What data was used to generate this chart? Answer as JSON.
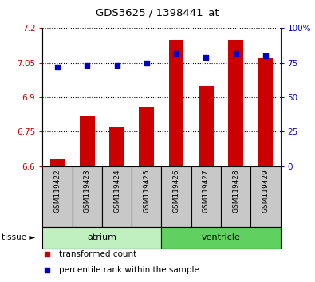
{
  "title": "GDS3625 / 1398441_at",
  "samples": [
    "GSM119422",
    "GSM119423",
    "GSM119424",
    "GSM119425",
    "GSM119426",
    "GSM119427",
    "GSM119428",
    "GSM119429"
  ],
  "transformed_count": [
    6.63,
    6.82,
    6.77,
    6.86,
    7.15,
    6.95,
    7.15,
    7.07
  ],
  "percentile_rank": [
    72,
    73,
    73,
    75,
    82,
    79,
    82,
    80
  ],
  "ylim_left": [
    6.6,
    7.2
  ],
  "ylim_right": [
    0,
    100
  ],
  "yticks_left": [
    6.6,
    6.75,
    6.9,
    7.05,
    7.2
  ],
  "yticks_right": [
    0,
    25,
    50,
    75,
    100
  ],
  "ytick_labels_left": [
    "6.6",
    "6.75",
    "6.9",
    "7.05",
    "7.2"
  ],
  "ytick_labels_right": [
    "0",
    "25",
    "50",
    "75",
    "100%"
  ],
  "groups": [
    {
      "name": "atrium",
      "indices": [
        0,
        1,
        2,
        3
      ],
      "color": "#c0f0c0"
    },
    {
      "name": "ventricle",
      "indices": [
        4,
        5,
        6,
        7
      ],
      "color": "#60d060"
    }
  ],
  "bar_color": "#cc0000",
  "dot_color": "#0000cc",
  "bar_width": 0.5,
  "legend": [
    {
      "label": "transformed count",
      "color": "#cc0000"
    },
    {
      "label": "percentile rank within the sample",
      "color": "#0000cc"
    }
  ],
  "left_axis_color": "#cc0000",
  "right_axis_color": "#0000cc",
  "cell_bg": "#c8c8c8",
  "cell_edge": "#000000",
  "tissue_arrow": "►"
}
